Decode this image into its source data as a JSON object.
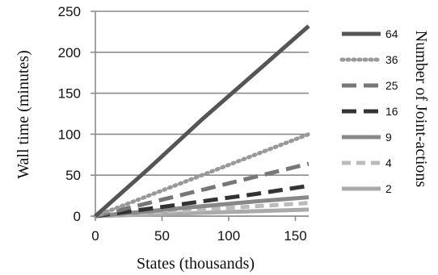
{
  "chart_data": {
    "type": "line",
    "xlabel": "States (thousands)",
    "ylabel": "Wall time (minutes)",
    "legend_title": "Number of Joint-actions",
    "legend_position": "right",
    "grid": "horizontal",
    "xlim": [
      0,
      160
    ],
    "ylim": [
      0,
      250
    ],
    "xticks": [
      "0",
      "50",
      "100",
      "150"
    ],
    "yticks": [
      "0",
      "50",
      "100",
      "150",
      "200",
      "250"
    ],
    "x": [
      0,
      40,
      80,
      120,
      160
    ],
    "series": [
      {
        "name": "64",
        "color": "#555555",
        "dash": "solid",
        "values": [
          0,
          58,
          118,
          175,
          232
        ]
      },
      {
        "name": "36",
        "color": "#999999",
        "dash": "dotted",
        "values": [
          0,
          25,
          50,
          75,
          100
        ]
      },
      {
        "name": "25",
        "color": "#777777",
        "dash": "long-dash",
        "values": [
          0,
          16,
          32,
          48,
          64
        ]
      },
      {
        "name": "16",
        "color": "#333333",
        "dash": "long-dash",
        "values": [
          0,
          9,
          18,
          27,
          37
        ]
      },
      {
        "name": "9",
        "color": "#888888",
        "dash": "solid",
        "values": [
          0,
          6,
          12,
          18,
          23
        ]
      },
      {
        "name": "4",
        "color": "#bbbbbb",
        "dash": "dash",
        "values": [
          0,
          4,
          8,
          12,
          16
        ]
      },
      {
        "name": "2",
        "color": "#aaaaaa",
        "dash": "solid",
        "values": [
          0,
          2,
          4,
          6,
          8
        ]
      }
    ]
  }
}
